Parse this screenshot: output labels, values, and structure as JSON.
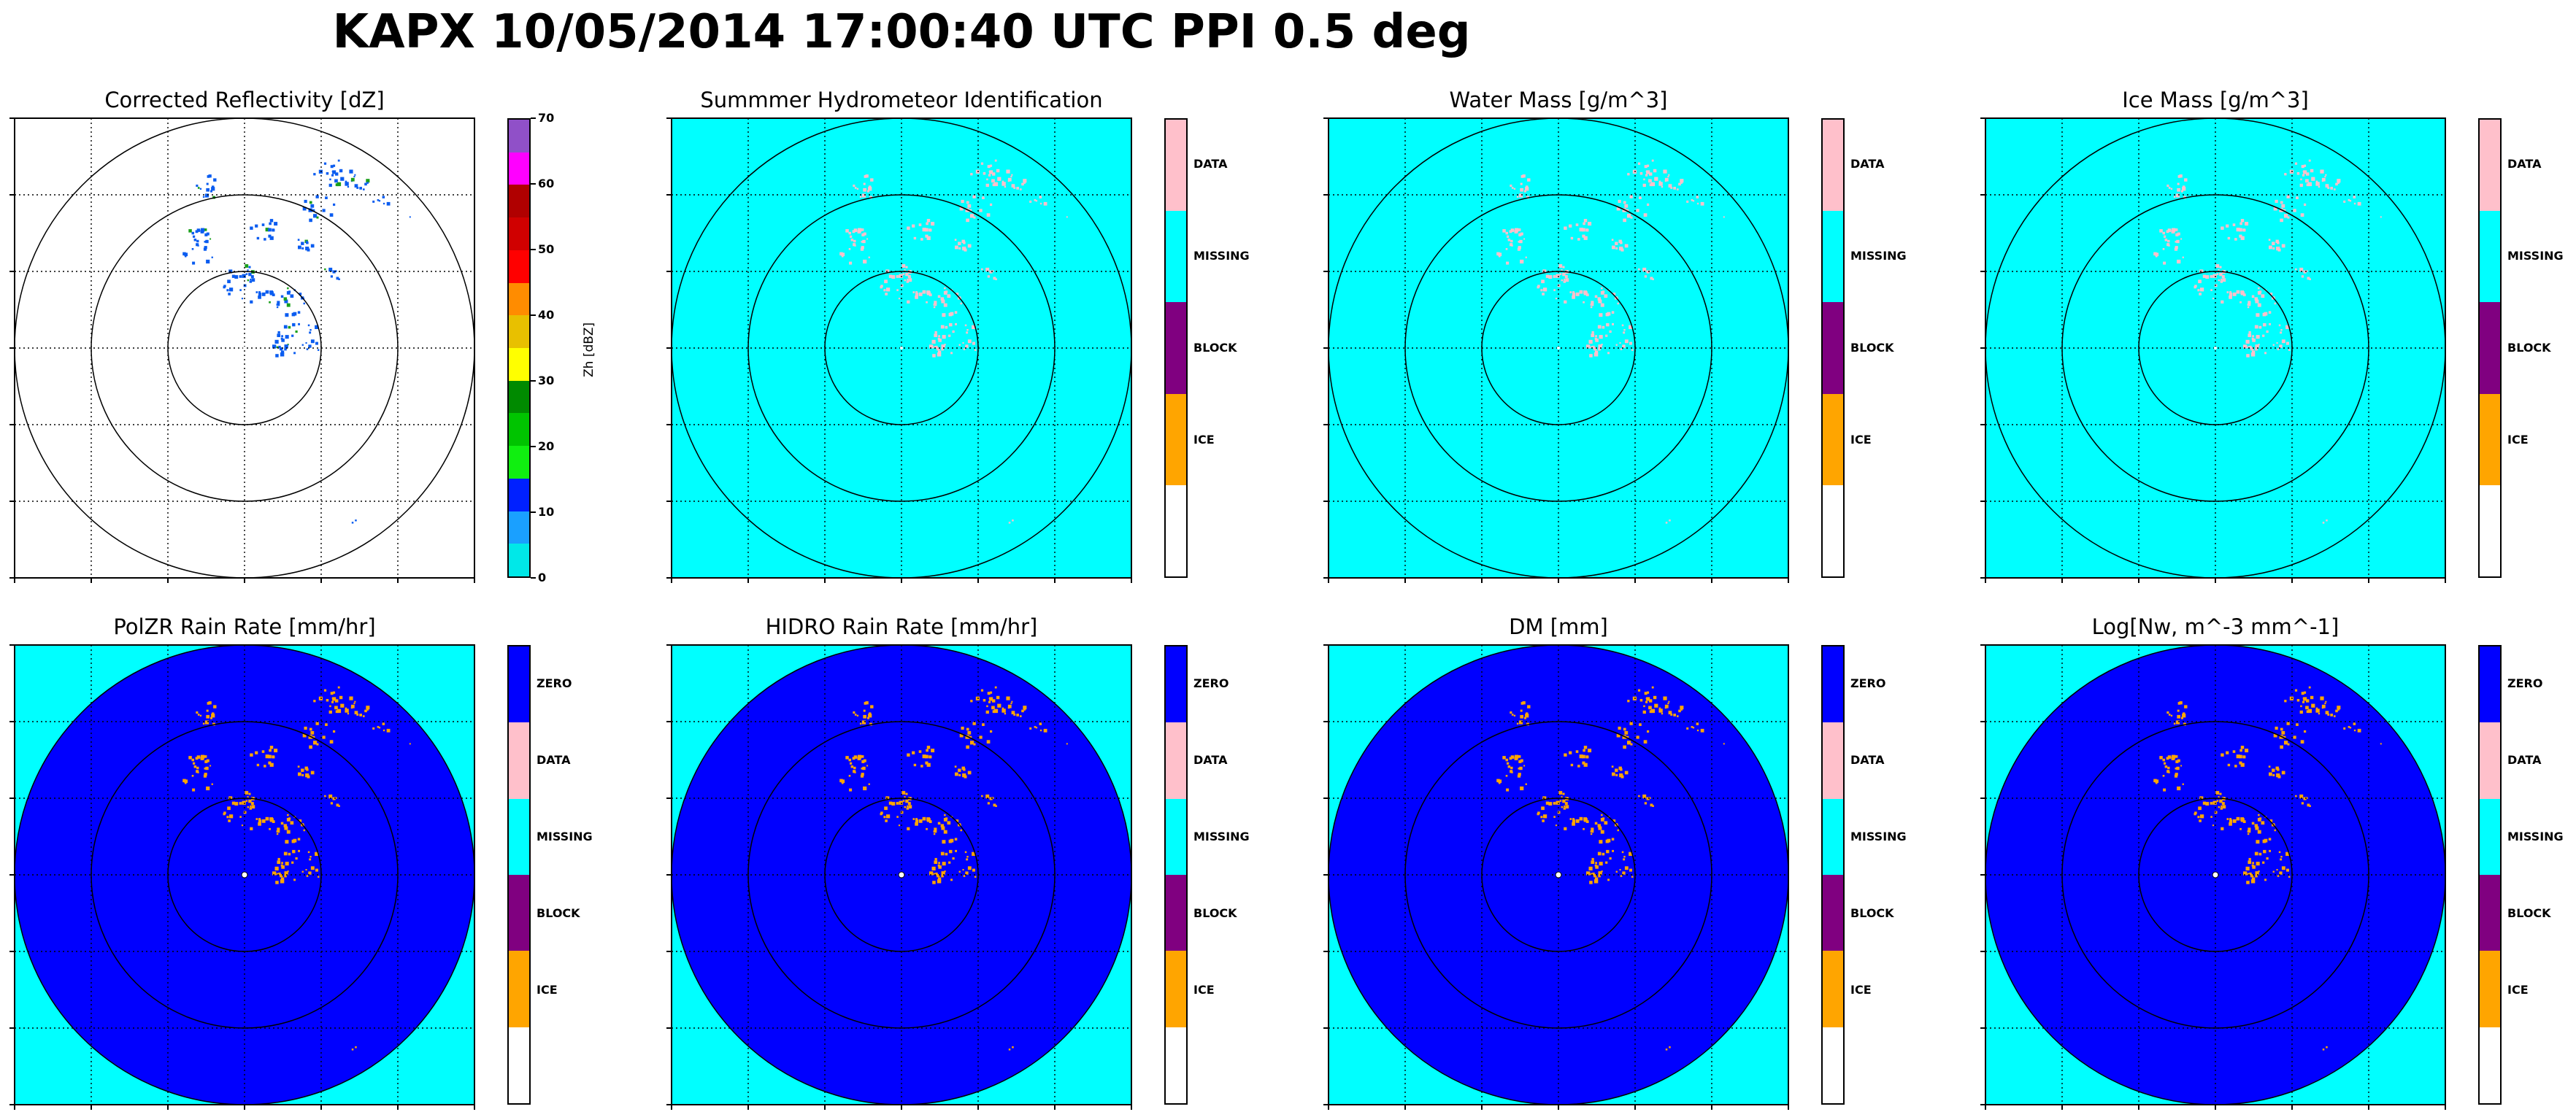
{
  "title": "KAPX 10/05/2014 17:00:40 UTC PPI 0.5 deg",
  "chart_data": [
    {
      "type": "heatmap",
      "title": "Corrected Reflectivity [dZ]",
      "background": "#ffffff",
      "fill_disk": false,
      "colorbar": {
        "kind": "numeric",
        "label": "Zh [dBZ]",
        "range": [
          0,
          70
        ],
        "ticks": [
          "0",
          "10",
          "20",
          "30",
          "40",
          "50",
          "60",
          "70"
        ],
        "colors": [
          "#00e8e8",
          "#1aa0ff",
          "#0020ff",
          "#10ef10",
          "#00c400",
          "#008a00",
          "#ffff00",
          "#e8c000",
          "#ff8c00",
          "#ff0000",
          "#d00000",
          "#b00000",
          "#ff00ff",
          "#9050c8"
        ]
      },
      "echo_color": "#0a5cf0",
      "echo_highlight": "#1a9f1a"
    },
    {
      "type": "heatmap",
      "title": "Summmer Hydrometeor Identification",
      "background": "#00ffff",
      "fill_disk": false,
      "colorbar": {
        "kind": "category",
        "categories": [
          "",
          "ICE",
          "BLOCK",
          "MISSING",
          "DATA"
        ],
        "colors": [
          "#ffffff",
          "#ffa500",
          "#800080",
          "#00ffff",
          "#ffc0cb"
        ]
      },
      "echo_color": "#ffc0cb"
    },
    {
      "type": "heatmap",
      "title": "Water Mass [g/m^3]",
      "background": "#00ffff",
      "fill_disk": false,
      "colorbar": {
        "kind": "category",
        "categories": [
          "",
          "ICE",
          "BLOCK",
          "MISSING",
          "DATA"
        ],
        "colors": [
          "#ffffff",
          "#ffa500",
          "#800080",
          "#00ffff",
          "#ffc0cb"
        ]
      },
      "echo_color": "#ffc0cb"
    },
    {
      "type": "heatmap",
      "title": "Ice Mass [g/m^3]",
      "background": "#00ffff",
      "fill_disk": false,
      "colorbar": {
        "kind": "category",
        "categories": [
          "",
          "ICE",
          "BLOCK",
          "MISSING",
          "DATA"
        ],
        "colors": [
          "#ffffff",
          "#ffa500",
          "#800080",
          "#00ffff",
          "#ffc0cb"
        ]
      },
      "echo_color": "#ffc0cb"
    },
    {
      "type": "heatmap",
      "title": "PolZR Rain Rate [mm/hr]",
      "background": "#00ffff",
      "fill_disk": true,
      "disk_color": "#0000ff",
      "colorbar": {
        "kind": "category",
        "categories": [
          "",
          "ICE",
          "BLOCK",
          "MISSING",
          "DATA",
          "ZERO"
        ],
        "colors": [
          "#ffffff",
          "#ffa500",
          "#800080",
          "#00ffff",
          "#ffc0cb",
          "#0000ff"
        ]
      },
      "echo_color": "#ffa500"
    },
    {
      "type": "heatmap",
      "title": "HIDRO Rain Rate [mm/hr]",
      "background": "#00ffff",
      "fill_disk": true,
      "disk_color": "#0000ff",
      "colorbar": {
        "kind": "category",
        "categories": [
          "",
          "ICE",
          "BLOCK",
          "MISSING",
          "DATA",
          "ZERO"
        ],
        "colors": [
          "#ffffff",
          "#ffa500",
          "#800080",
          "#00ffff",
          "#ffc0cb",
          "#0000ff"
        ]
      },
      "echo_color": "#ffa500"
    },
    {
      "type": "heatmap",
      "title": "DM [mm]",
      "background": "#00ffff",
      "fill_disk": true,
      "disk_color": "#0000ff",
      "colorbar": {
        "kind": "category",
        "categories": [
          "",
          "ICE",
          "BLOCK",
          "MISSING",
          "DATA",
          "ZERO"
        ],
        "colors": [
          "#ffffff",
          "#ffa500",
          "#800080",
          "#00ffff",
          "#ffc0cb",
          "#0000ff"
        ]
      },
      "echo_color": "#ffa500"
    },
    {
      "type": "heatmap",
      "title": "Log[Nw, m^-3 mm^-1]",
      "background": "#00ffff",
      "fill_disk": true,
      "disk_color": "#0000ff",
      "colorbar": {
        "kind": "category",
        "categories": [
          "",
          "ICE",
          "BLOCK",
          "MISSING",
          "DATA",
          "ZERO"
        ],
        "colors": [
          "#ffffff",
          "#ffa500",
          "#800080",
          "#00ffff",
          "#ffc0cb",
          "#0000ff"
        ]
      },
      "echo_color": "#ffa500"
    }
  ]
}
